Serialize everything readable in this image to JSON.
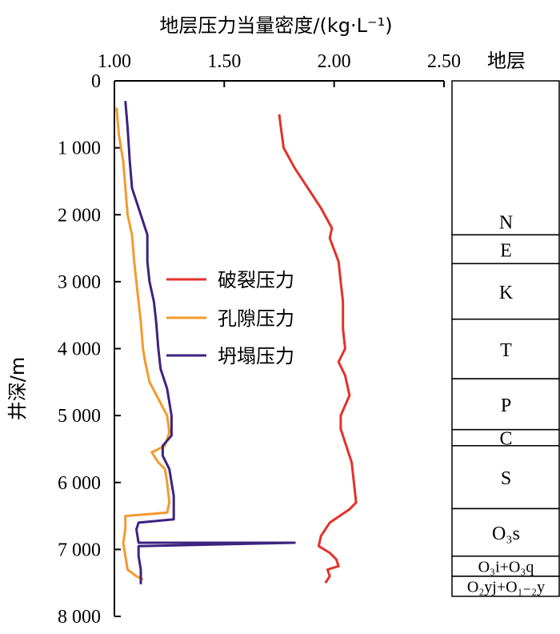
{
  "chart_data": {
    "type": "line",
    "title": "地层压力当量密度/(kg·L⁻¹)",
    "xlabel": "地层压力当量密度/(kg·L⁻¹)",
    "ylabel": "井深/m",
    "xlim": [
      1.0,
      2.5
    ],
    "ylim": [
      0,
      8000
    ],
    "y_inverted": true,
    "x_ticks": [
      1.0,
      1.5,
      2.0,
      2.5
    ],
    "x_tick_labels": [
      "1.00",
      "1.50",
      "2.00",
      "2.50"
    ],
    "y_ticks": [
      0,
      1000,
      2000,
      3000,
      4000,
      5000,
      6000,
      7000,
      8000
    ],
    "y_tick_labels": [
      "0",
      "1 000",
      "2 000",
      "3 000",
      "4 000",
      "5 000",
      "6 000",
      "7 000",
      "8 000"
    ],
    "legend_position": "middle-left",
    "series": [
      {
        "name": "破裂压力",
        "color": "#e4312b",
        "points": [
          [
            1.75,
            500
          ],
          [
            1.76,
            750
          ],
          [
            1.77,
            1000
          ],
          [
            1.82,
            1300
          ],
          [
            1.88,
            1600
          ],
          [
            1.94,
            1900
          ],
          [
            1.99,
            2200
          ],
          [
            1.98,
            2350
          ],
          [
            2.02,
            2700
          ],
          [
            2.03,
            3000
          ],
          [
            2.04,
            3300
          ],
          [
            2.04,
            3700
          ],
          [
            2.05,
            4000
          ],
          [
            2.02,
            4200
          ],
          [
            2.05,
            4400
          ],
          [
            2.07,
            4700
          ],
          [
            2.03,
            5000
          ],
          [
            2.03,
            5200
          ],
          [
            2.05,
            5400
          ],
          [
            2.08,
            5700
          ],
          [
            2.09,
            6000
          ],
          [
            2.1,
            6300
          ],
          [
            2.07,
            6400
          ],
          [
            1.98,
            6600
          ],
          [
            1.94,
            6800
          ],
          [
            1.93,
            6950
          ],
          [
            1.98,
            7050
          ],
          [
            2.01,
            7150
          ],
          [
            2.02,
            7250
          ],
          [
            1.97,
            7300
          ],
          [
            1.98,
            7400
          ],
          [
            1.96,
            7500
          ]
        ]
      },
      {
        "name": "孔隙压力",
        "color": "#f39a2e",
        "points": [
          [
            1.01,
            400
          ],
          [
            1.02,
            800
          ],
          [
            1.04,
            1200
          ],
          [
            1.05,
            1600
          ],
          [
            1.06,
            2000
          ],
          [
            1.08,
            2300
          ],
          [
            1.09,
            2700
          ],
          [
            1.1,
            3000
          ],
          [
            1.11,
            3300
          ],
          [
            1.12,
            3600
          ],
          [
            1.13,
            4000
          ],
          [
            1.14,
            4200
          ],
          [
            1.16,
            4500
          ],
          [
            1.2,
            4750
          ],
          [
            1.24,
            5000
          ],
          [
            1.25,
            5250
          ],
          [
            1.23,
            5450
          ],
          [
            1.17,
            5550
          ],
          [
            1.2,
            5700
          ],
          [
            1.23,
            5800
          ],
          [
            1.24,
            6000
          ],
          [
            1.25,
            6300
          ],
          [
            1.24,
            6450
          ],
          [
            1.05,
            6500
          ],
          [
            1.05,
            6700
          ],
          [
            1.04,
            6900
          ],
          [
            1.05,
            7100
          ],
          [
            1.06,
            7300
          ],
          [
            1.1,
            7400
          ],
          [
            1.13,
            7450
          ]
        ]
      },
      {
        "name": "坍塌压力",
        "color": "#3d2380",
        "points": [
          [
            1.05,
            300
          ],
          [
            1.06,
            700
          ],
          [
            1.07,
            1200
          ],
          [
            1.08,
            1600
          ],
          [
            1.12,
            2000
          ],
          [
            1.15,
            2300
          ],
          [
            1.15,
            2700
          ],
          [
            1.16,
            3000
          ],
          [
            1.18,
            3300
          ],
          [
            1.19,
            3600
          ],
          [
            1.2,
            4000
          ],
          [
            1.21,
            4300
          ],
          [
            1.24,
            4600
          ],
          [
            1.26,
            5000
          ],
          [
            1.26,
            5300
          ],
          [
            1.22,
            5450
          ],
          [
            1.22,
            5600
          ],
          [
            1.25,
            5800
          ],
          [
            1.26,
            6000
          ],
          [
            1.27,
            6200
          ],
          [
            1.27,
            6550
          ],
          [
            1.11,
            6600
          ],
          [
            1.1,
            6700
          ],
          [
            1.11,
            6900
          ],
          [
            1.82,
            6900
          ],
          [
            1.11,
            6950
          ],
          [
            1.11,
            7100
          ],
          [
            1.12,
            7300
          ],
          [
            1.12,
            7520
          ]
        ]
      }
    ]
  },
  "strata": {
    "header": "地层",
    "layers": [
      {
        "label": "N",
        "top": 0,
        "bottom": 2300
      },
      {
        "label": "E",
        "top": 2300,
        "bottom": 2730
      },
      {
        "label": "K",
        "top": 2730,
        "bottom": 3560
      },
      {
        "label": "T",
        "top": 3560,
        "bottom": 4450
      },
      {
        "label": "P",
        "top": 4450,
        "bottom": 5210
      },
      {
        "label": "C",
        "top": 5210,
        "bottom": 5450
      },
      {
        "label": "S",
        "top": 5450,
        "bottom": 6390
      },
      {
        "label": "O₃s",
        "top": 6390,
        "bottom": 7100
      },
      {
        "label": "O₃i+O₃q",
        "top": 7100,
        "bottom": 7400
      },
      {
        "label": "O₂yj+O₁₋₂y",
        "top": 7400,
        "bottom": 7700
      }
    ]
  }
}
